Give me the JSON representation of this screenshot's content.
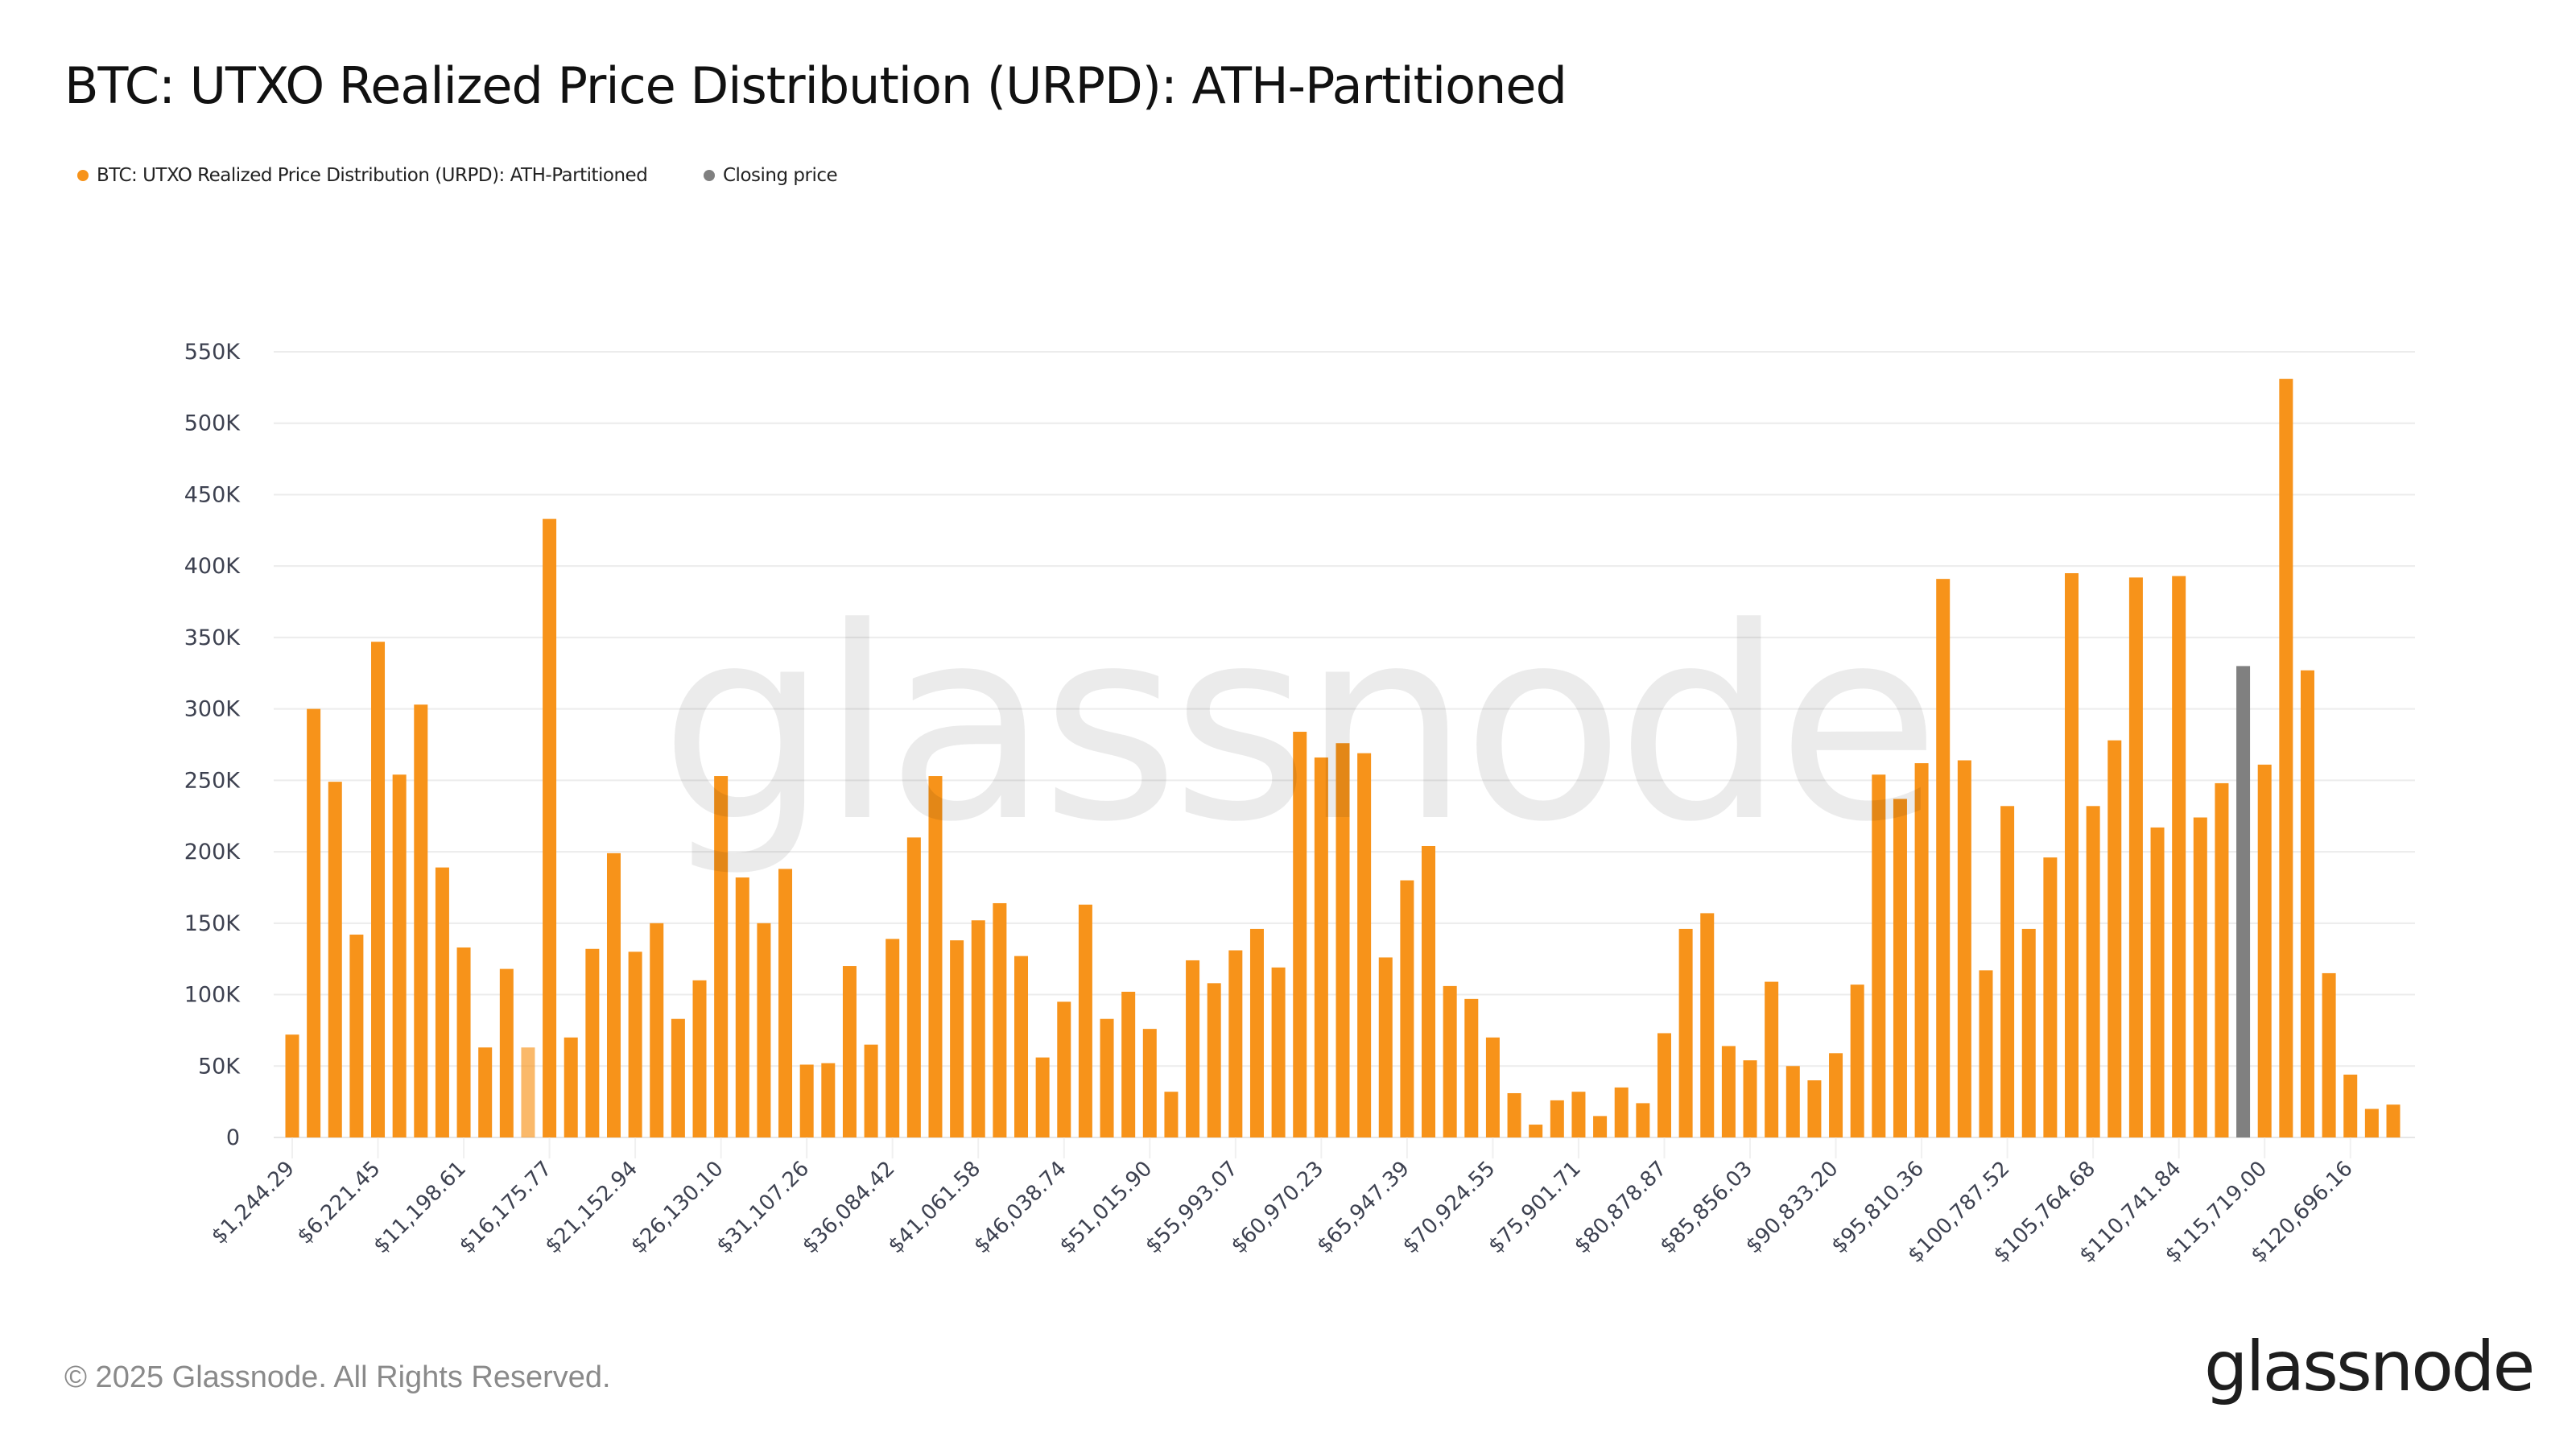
{
  "title": "BTC: UTXO Realized Price Distribution (URPD): ATH-Partitioned",
  "legend": [
    {
      "label": "BTC: UTXO Realized Price Distribution (URPD): ATH-Partitioned",
      "color": "#f7931a"
    },
    {
      "label": "Closing price",
      "color": "#808080"
    }
  ],
  "footer": {
    "copyright": "© 2025 Glassnode. All Rights Reserved.",
    "logo": "glassnode"
  },
  "watermark": "glassnode",
  "chart_data": {
    "type": "bar",
    "title": "BTC: UTXO Realized Price Distribution (URPD): ATH-Partitioned",
    "xlabel": "",
    "ylabel": "",
    "ylim": [
      0,
      550000
    ],
    "y_ticks": [
      0,
      50000,
      100000,
      150000,
      200000,
      250000,
      300000,
      350000,
      400000,
      450000,
      500000,
      550000
    ],
    "y_tick_labels": [
      "0",
      "50K",
      "100K",
      "150K",
      "200K",
      "250K",
      "300K",
      "350K",
      "400K",
      "450K",
      "500K",
      "550K"
    ],
    "x_tick_every": 4,
    "x_tick_labels": [
      "$1,244.29",
      "$6,221.45",
      "$11,198.61",
      "$16,175.77",
      "$21,152.94",
      "$26,130.10",
      "$31,107.26",
      "$36,084.42",
      "$41,061.58",
      "$46,038.74",
      "$51,015.90",
      "$55,993.07",
      "$60,970.23",
      "$65,947.39",
      "$70,924.55",
      "$75,901.71",
      "$80,878.87",
      "$85,856.03",
      "$90,833.20",
      "$95,810.36",
      "$100,787.52",
      "$105,764.68",
      "$110,741.84",
      "$115,719.00",
      "$120,696.16"
    ],
    "grid": true,
    "legend_position": "top-left",
    "closing_price_bin_index": 91,
    "faded_bin_indices": [
      11
    ],
    "series": [
      {
        "name": "BTC: UTXO Realized Price Distribution (URPD): ATH-Partitioned",
        "color": "#f7931a",
        "values": [
          72000,
          300000,
          249000,
          142000,
          347000,
          254000,
          303000,
          189000,
          133000,
          63000,
          118000,
          63000,
          433000,
          70000,
          132000,
          199000,
          130000,
          150000,
          83000,
          110000,
          253000,
          182000,
          150000,
          188000,
          51000,
          52000,
          120000,
          65000,
          139000,
          210000,
          253000,
          138000,
          152000,
          164000,
          127000,
          56000,
          95000,
          163000,
          83000,
          102000,
          76000,
          32000,
          124000,
          108000,
          131000,
          146000,
          119000,
          284000,
          266000,
          276000,
          269000,
          126000,
          180000,
          204000,
          106000,
          97000,
          70000,
          31000,
          9000,
          26000,
          32000,
          15000,
          35000,
          24000,
          73000,
          146000,
          157000,
          64000,
          54000,
          109000,
          50000,
          40000,
          59000,
          107000,
          254000,
          237000,
          262000,
          391000,
          264000,
          117000,
          232000,
          146000,
          196000,
          395000,
          232000,
          278000,
          392000,
          217000,
          393000,
          224000,
          248000,
          null,
          261000,
          531000,
          327000,
          115000,
          44000,
          20000,
          23000
        ]
      },
      {
        "name": "Closing price",
        "color": "#808080",
        "bin_index": 91,
        "value": 330000
      }
    ]
  }
}
